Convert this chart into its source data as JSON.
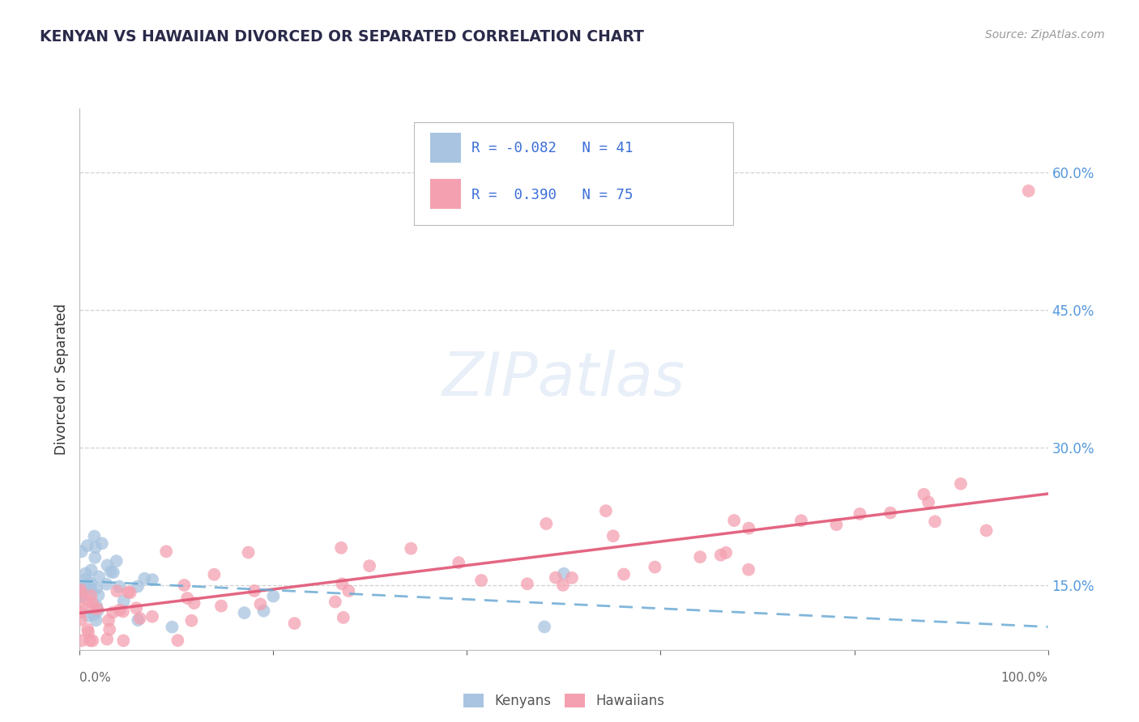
{
  "title": "KENYAN VS HAWAIIAN DIVORCED OR SEPARATED CORRELATION CHART",
  "source_text": "Source: ZipAtlas.com",
  "ylabel": "Divorced or Separated",
  "watermark": "ZIPatlas",
  "xlim": [
    0.0,
    1.0
  ],
  "ylim": [
    0.08,
    0.67
  ],
  "yticks": [
    0.15,
    0.3,
    0.45,
    0.6
  ],
  "ytick_labels": [
    "15.0%",
    "30.0%",
    "45.0%",
    "60.0%"
  ],
  "xtick_labels_ends": [
    "0.0%",
    "100.0%"
  ],
  "kenyan_color": "#a8c4e0",
  "hawaiian_color": "#f4a0b0",
  "kenyan_line_color": "#6aaad4",
  "hawaiian_line_color": "#e05575",
  "legend_r_color": "#3a6ed8",
  "title_color": "#2a2a4a",
  "source_color": "#999999",
  "grid_color": "#cccccc",
  "background_color": "#ffffff",
  "ytick_color": "#5599dd",
  "xtick_color": "#666666",
  "hawaiian_trend_start": 0.12,
  "hawaiian_trend_end": 0.25,
  "kenyan_trend_start": 0.155,
  "kenyan_trend_end": 0.105
}
